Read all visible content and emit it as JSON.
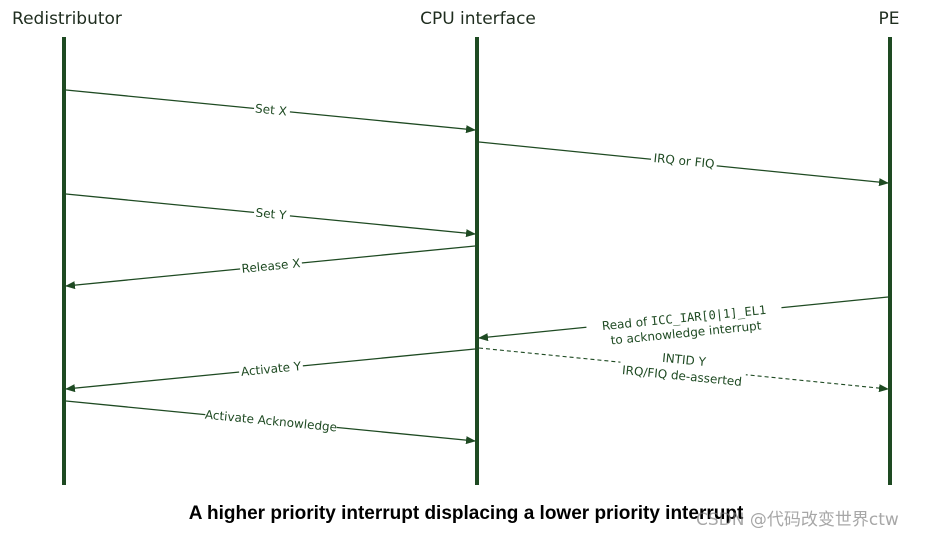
{
  "lanes": {
    "redistributor": "Redistributor",
    "cpu_interface": "CPU interface",
    "pe": "PE"
  },
  "messages": {
    "set_x": "Set X",
    "irq_or_fiq": "IRQ or FIQ",
    "set_y": "Set Y",
    "release_x": "Release X",
    "read_prefix": "Read of ",
    "read_register": "ICC_IAR[0|1]_EL1",
    "read_line2": "to acknowledge interrupt",
    "intid_y": "INTID Y",
    "deasserted": "IRQ/FIQ de-asserted",
    "activate_y": "Activate Y",
    "activate_ack": "Activate Acknowledge"
  },
  "caption": "A higher priority interrupt displacing a lower priority interrupt",
  "watermark": "CSDN @代码改变世界ctw",
  "colors": {
    "lifeline": "#1e4a22",
    "arrow": "#1e4a22",
    "label": "#1e4a22"
  }
}
